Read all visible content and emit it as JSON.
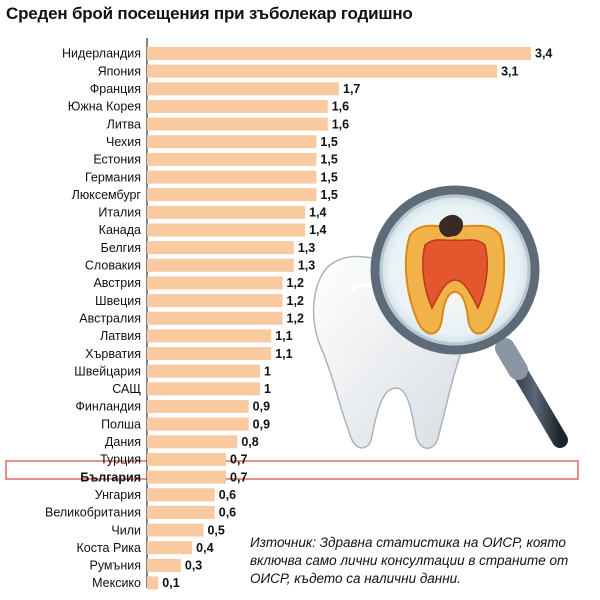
{
  "chart_data": {
    "type": "bar",
    "orientation": "horizontal",
    "title": "Среден брой посещения при зъболекар годишно",
    "categories": [
      "Нидерландия",
      "Япония",
      "Франция",
      "Южна Корея",
      "Литва",
      "Чехия",
      "Естония",
      "Германия",
      "Люксембург",
      "Италия",
      "Канада",
      "Белгия",
      "Словакия",
      "Австрия",
      "Швеция",
      "Австралия",
      "Латвия",
      "Хърватия",
      "Швейцария",
      "САЩ",
      "Финландия",
      "Полша",
      "Дания",
      "Турция",
      "България",
      "Унгария",
      "Великобритания",
      "Чили",
      "Коста Рика",
      "Румъния",
      "Мексико"
    ],
    "values": [
      3.4,
      3.1,
      1.7,
      1.6,
      1.6,
      1.5,
      1.5,
      1.5,
      1.5,
      1.4,
      1.4,
      1.3,
      1.3,
      1.2,
      1.2,
      1.2,
      1.1,
      1.1,
      1,
      1,
      0.9,
      0.9,
      0.8,
      0.7,
      0.7,
      0.6,
      0.6,
      0.5,
      0.4,
      0.3,
      0.1
    ],
    "value_labels": [
      "3,4",
      "3,1",
      "1,7",
      "1,6",
      "1,6",
      "1,5",
      "1,5",
      "1,5",
      "1,5",
      "1,4",
      "1,4",
      "1,3",
      "1,3",
      "1,2",
      "1,2",
      "1,2",
      "1,1",
      "1,1",
      "1",
      "1",
      "0,9",
      "0,9",
      "0,8",
      "0,7",
      "0,7",
      "0,6",
      "0,6",
      "0,5",
      "0,4",
      "0,3",
      "0,1"
    ],
    "highlighted_category": "България",
    "xlim": [
      0,
      3.4
    ],
    "grid": false,
    "legend": "none",
    "bar_color": "#f9c9a0",
    "highlight_border_color": "#d9534f"
  },
  "source": {
    "label": "Източник",
    "text": ": Здравна статистика на ОИСР, която включва само лични консултации в страните от ОИСР, където са налични данни."
  },
  "illustration": {
    "icons": [
      "tooth-icon",
      "magnifying-glass-icon"
    ]
  }
}
